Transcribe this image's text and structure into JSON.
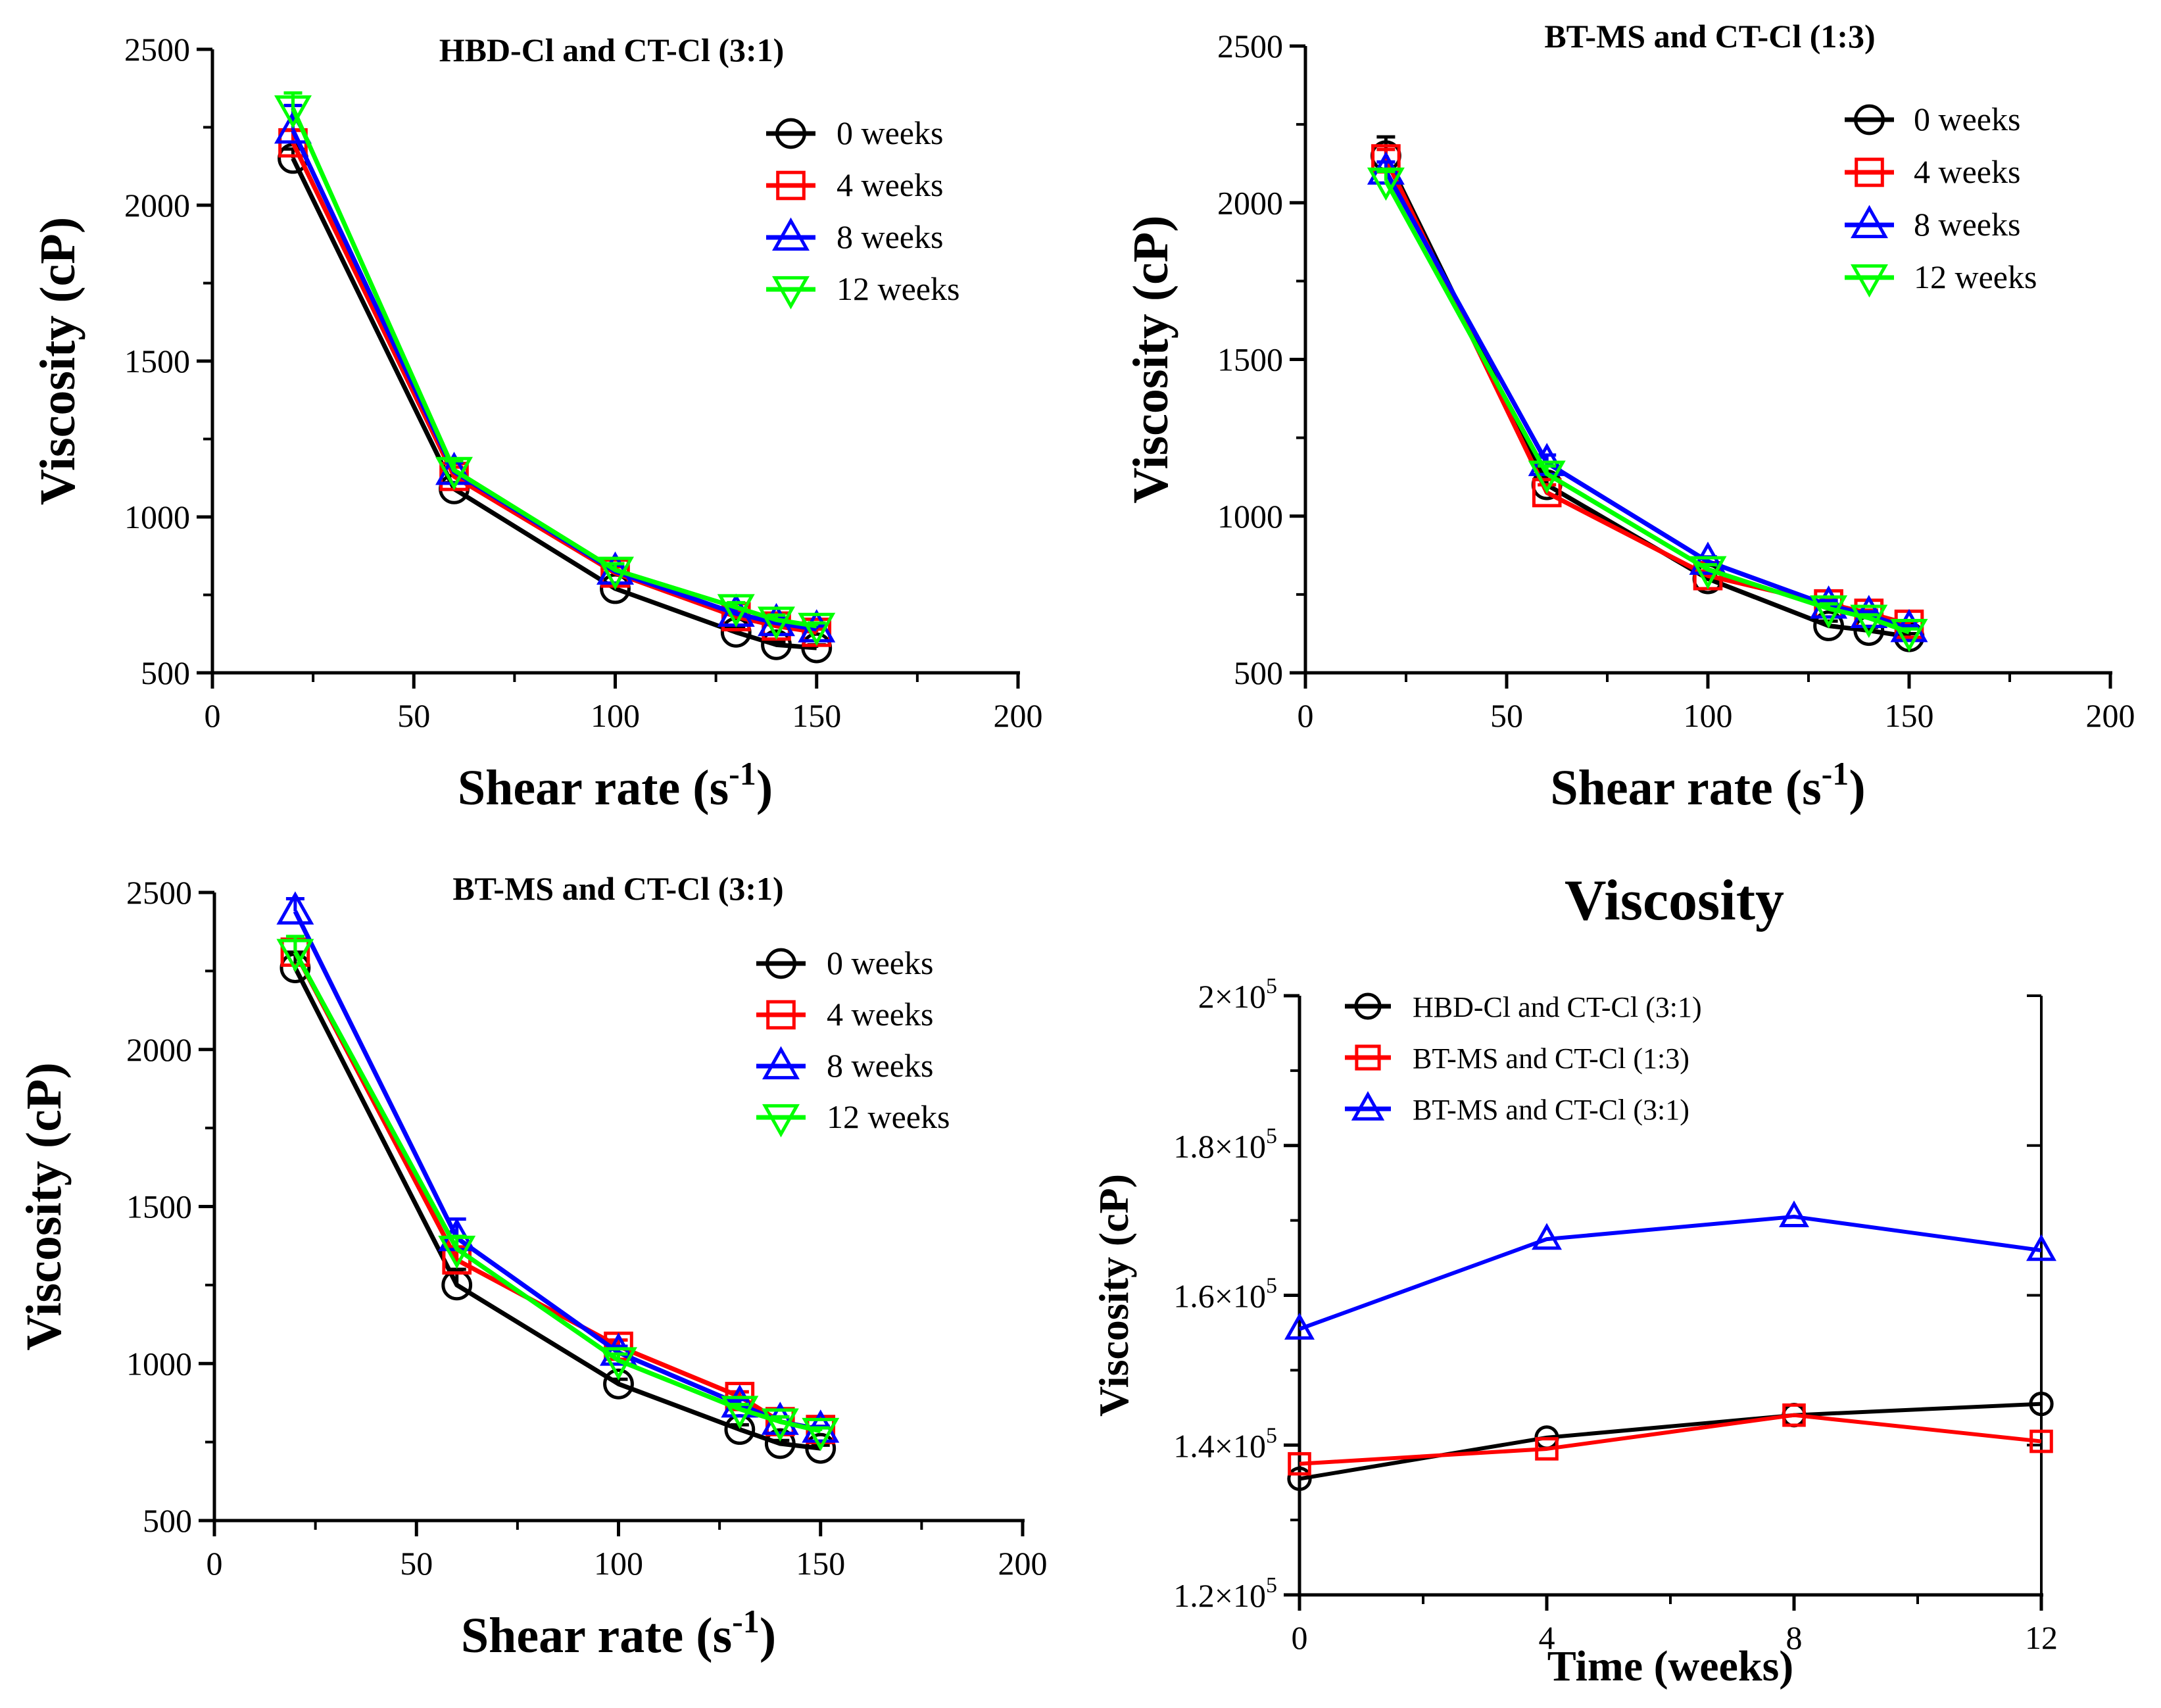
{
  "figure": {
    "colors": {
      "s0": "#000000",
      "s1": "#ff0000",
      "s2": "#0000ff",
      "s3": "#00ff00"
    }
  },
  "chart_data": [
    {
      "type": "line",
      "title": "HBD-Cl and CT-Cl  (3:1)",
      "xlabel": "Shear rate (s-1)",
      "xlabel_main": "Shear rate (s",
      "xlabel_sup": "-1",
      "xlabel_close": ")",
      "ylabel": "Viscosity (cP)",
      "xlim": [
        0,
        200
      ],
      "ylim": [
        500,
        2500
      ],
      "xticks": [
        "0",
        "50",
        "100",
        "150",
        "200"
      ],
      "yticks": [
        "500",
        "1000",
        "1500",
        "2000",
        "2500"
      ],
      "x": [
        20,
        60,
        100,
        130,
        140,
        150
      ],
      "series": [
        {
          "name": "0 weeks",
          "marker": "circle",
          "values": [
            2150,
            1090,
            770,
            630,
            590,
            580
          ],
          "err": [
            30,
            20,
            15,
            15,
            10,
            10
          ]
        },
        {
          "name": "4 weeks",
          "marker": "square",
          "values": [
            2200,
            1130,
            820,
            680,
            650,
            630
          ],
          "err": [
            40,
            30,
            20,
            15,
            15,
            10
          ]
        },
        {
          "name": "8 weeks",
          "marker": "triangle-up",
          "values": [
            2240,
            1145,
            825,
            690,
            660,
            640
          ],
          "err": [
            80,
            30,
            20,
            15,
            15,
            10
          ]
        },
        {
          "name": "12 weeks",
          "marker": "triangle-down",
          "values": [
            2310,
            1150,
            830,
            710,
            670,
            650
          ],
          "err": [
            50,
            30,
            20,
            15,
            15,
            10
          ]
        }
      ]
    },
    {
      "type": "line",
      "title": "BT-MS and CT-Cl  (1:3)",
      "xlabel": "Shear rate (s-1)",
      "xlabel_main": "Shear rate (s",
      "xlabel_sup": "-1",
      "xlabel_close": ")",
      "ylabel": "Viscosity (cP)",
      "xlim": [
        0,
        200
      ],
      "ylim": [
        500,
        2500
      ],
      "xticks": [
        "0",
        "50",
        "100",
        "150",
        "200"
      ],
      "yticks": [
        "500",
        "1000",
        "1500",
        "2000",
        "2500"
      ],
      "x": [
        20,
        60,
        100,
        130,
        140,
        150
      ],
      "series": [
        {
          "name": "0 weeks",
          "marker": "circle",
          "values": [
            2150,
            1100,
            800,
            650,
            635,
            615
          ],
          "err": [
            60,
            30,
            15,
            15,
            10,
            10
          ]
        },
        {
          "name": "4 weeks",
          "marker": "square",
          "values": [
            2140,
            1075,
            810,
            720,
            690,
            655
          ],
          "err": [
            30,
            25,
            15,
            15,
            10,
            10
          ]
        },
        {
          "name": "8 weeks",
          "marker": "triangle-up",
          "values": [
            2100,
            1170,
            855,
            715,
            685,
            640
          ],
          "err": [
            30,
            25,
            15,
            15,
            10,
            10
          ]
        },
        {
          "name": "12 weeks",
          "marker": "triangle-down",
          "values": [
            2070,
            1135,
            830,
            705,
            675,
            630
          ],
          "err": [
            30,
            25,
            15,
            15,
            10,
            10
          ]
        }
      ]
    },
    {
      "type": "line",
      "title": "BT-MS and CT-Cl (3:1)",
      "xlabel": "Shear rate (s-1)",
      "xlabel_main": "Shear rate (s",
      "xlabel_sup": "-1",
      "xlabel_close": ")",
      "ylabel": "Viscosity (cP)",
      "xlim": [
        0,
        200
      ],
      "ylim": [
        500,
        2500
      ],
      "xticks": [
        "0",
        "50",
        "100",
        "150",
        "200"
      ],
      "yticks": [
        "500",
        "1000",
        "1500",
        "2000",
        "2500"
      ],
      "x": [
        20,
        60,
        100,
        130,
        140,
        150
      ],
      "series": [
        {
          "name": "0 weeks",
          "marker": "circle",
          "values": [
            2260,
            1250,
            935,
            790,
            745,
            730
          ],
          "err": [
            50,
            50,
            15,
            15,
            10,
            10
          ]
        },
        {
          "name": "4 weeks",
          "marker": "square",
          "values": [
            2310,
            1330,
            1055,
            895,
            815,
            790
          ],
          "err": [
            40,
            40,
            20,
            15,
            15,
            10
          ]
        },
        {
          "name": "8 weeks",
          "marker": "triangle-up",
          "values": [
            2440,
            1400,
            1035,
            870,
            815,
            790
          ],
          "err": [
            40,
            60,
            20,
            15,
            15,
            10
          ]
        },
        {
          "name": "12 weeks",
          "marker": "triangle-down",
          "values": [
            2310,
            1365,
            1010,
            855,
            815,
            785
          ],
          "err": [
            50,
            40,
            20,
            15,
            15,
            10
          ]
        }
      ]
    },
    {
      "type": "line",
      "title": "Viscosity",
      "xlabel": "Time (weeks)",
      "ylabel": "Viscosity (cP)",
      "xlim": [
        0,
        12
      ],
      "ylim": [
        120000,
        200000
      ],
      "xticks": [
        "0",
        "4",
        "8",
        "12"
      ],
      "ytick_mantissa": [
        "1.2×10",
        "1.4×10",
        "1.6×10",
        "1.8×10",
        "2×10"
      ],
      "ytick_exp": "5",
      "x": [
        0,
        4,
        8,
        12
      ],
      "series": [
        {
          "name": "HBD-Cl and CT-Cl  (3:1)",
          "marker": "circle",
          "values": [
            135500,
            141000,
            144000,
            145500
          ]
        },
        {
          "name": "BT-MS and CT-Cl  (1:3)",
          "marker": "square",
          "values": [
            137500,
            139500,
            144000,
            140500
          ]
        },
        {
          "name": "BT-MS and CT-Cl  (3:1)",
          "marker": "triangle-up",
          "values": [
            155500,
            167500,
            170500,
            166000
          ]
        }
      ]
    }
  ]
}
